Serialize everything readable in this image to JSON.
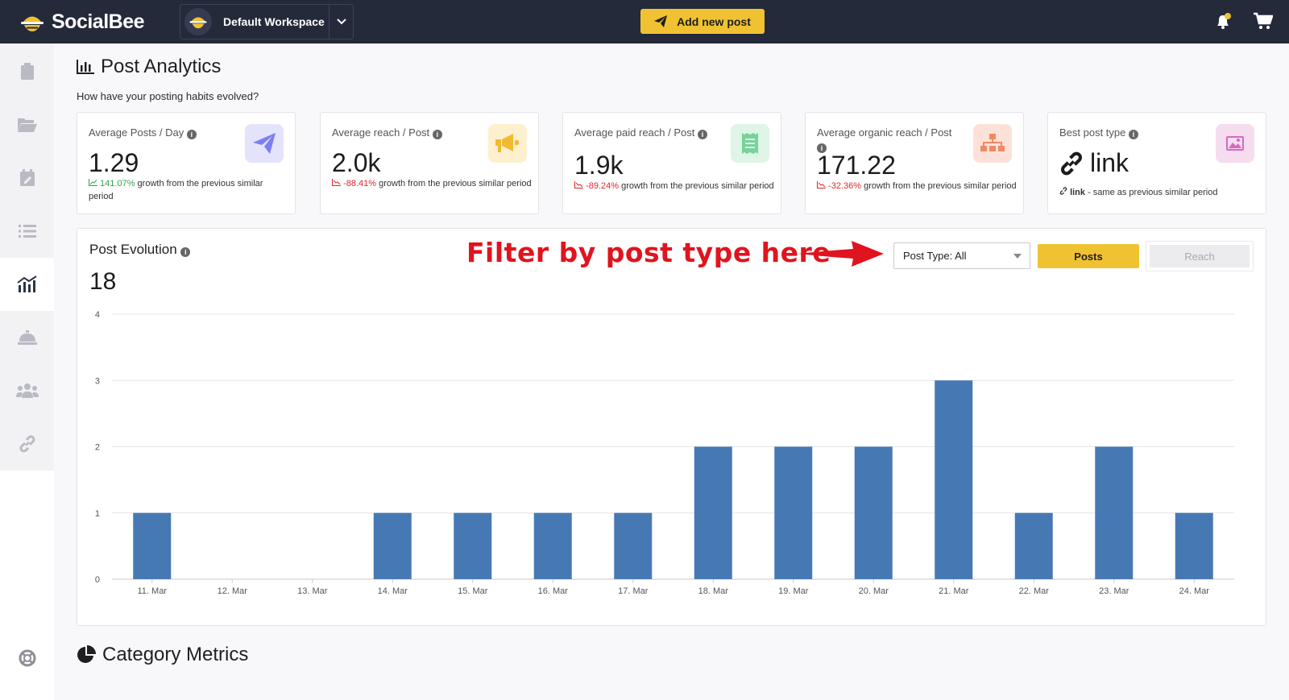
{
  "app": {
    "brand": "SocialBee",
    "workspace": "Default Workspace",
    "add_post_label": "Add new post"
  },
  "sidebar": {
    "items": [
      {
        "icon": "clipboard-icon"
      },
      {
        "icon": "folder-icon"
      },
      {
        "icon": "calendar-edit-icon"
      },
      {
        "icon": "list-icon"
      },
      {
        "icon": "analytics-icon",
        "active": true
      },
      {
        "icon": "concierge-bell-icon"
      },
      {
        "icon": "team-icon"
      },
      {
        "icon": "link-icon"
      }
    ],
    "help_icon": "lifebuoy-icon"
  },
  "header": {
    "title": "Post Analytics",
    "subtitle": "How have your posting habits evolved?"
  },
  "cards": [
    {
      "label": "Average Posts / Day",
      "value": "1.29",
      "change": "141.07%",
      "trend": "up",
      "growth_text": " growth from the previous similar period",
      "icon": "paper-plane-icon",
      "icon_bg": "#e3e4fb",
      "icon_color": "#7c7ff0"
    },
    {
      "label": "Average reach / Post",
      "value": "2.0k",
      "change": "-88.41%",
      "trend": "down",
      "growth_text": " growth from the previous similar period",
      "icon": "megaphone-icon",
      "icon_bg": "#fdf0cf",
      "icon_color": "#f2b932"
    },
    {
      "label": "Average paid reach / Post",
      "value": "1.9k",
      "change": "-89.24%",
      "trend": "down",
      "growth_text": " growth from the previous similar period",
      "icon": "receipt-icon",
      "icon_bg": "#dff5e7",
      "icon_color": "#76d39a"
    },
    {
      "label": "Average organic reach / Post",
      "value": "171.22",
      "change": "-32.36%",
      "trend": "down",
      "growth_text": " growth from the previous similar period",
      "icon": "sitemap-icon",
      "icon_bg": "#fde1d8",
      "icon_color": "#ef8a65"
    },
    {
      "label": "Best post type",
      "value": "link",
      "note_bold": "link",
      "note_text": " - same as previous similar period",
      "icon": "image-icon",
      "icon_bg": "#f6dcef",
      "icon_color": "#d46bc0"
    }
  ],
  "evolution": {
    "title": "Post Evolution",
    "total": "18",
    "annotation": "Filter by post type here",
    "filter_value": "Post Type: All",
    "toggle_posts": "Posts",
    "toggle_reach": "Reach"
  },
  "chart_data": {
    "type": "bar",
    "categories": [
      "11. Mar",
      "12. Mar",
      "13. Mar",
      "14. Mar",
      "15. Mar",
      "16. Mar",
      "17. Mar",
      "18. Mar",
      "19. Mar",
      "20. Mar",
      "21. Mar",
      "22. Mar",
      "23. Mar",
      "24. Mar"
    ],
    "values": [
      1,
      0,
      0,
      1,
      1,
      1,
      1,
      2,
      2,
      2,
      3,
      1,
      2,
      1
    ],
    "yticks": [
      0,
      1,
      2,
      3,
      4
    ],
    "ylim": [
      0,
      4
    ],
    "color": "#4679b4",
    "grid": true
  },
  "category": {
    "title": "Category Metrics"
  }
}
